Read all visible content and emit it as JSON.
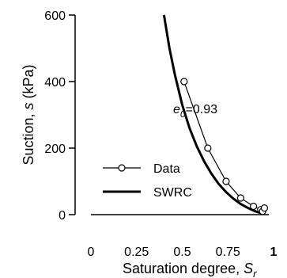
{
  "chart_data": {
    "type": "line",
    "xlabel_prefix": "Saturation degree, ",
    "xlabel_symbol": "S",
    "xlabel_sub": "r",
    "ylabel_prefix": "Suction, ",
    "ylabel_symbol": "s",
    "ylabel_suffix": " (kPa)",
    "xlim": [
      0,
      1
    ],
    "ylim": [
      0,
      600
    ],
    "x_ticks": [
      0,
      0.25,
      0.5,
      0.75,
      1
    ],
    "x_tick_labels": [
      "0",
      "0.25",
      "0.5",
      "0.75",
      "1"
    ],
    "y_ticks": [
      0,
      200,
      400,
      600
    ],
    "y_tick_labels": [
      "0",
      "200",
      "400",
      "600"
    ],
    "grid": false,
    "legend_position": "lower-left",
    "annotation": {
      "symbol": "e",
      "sub": "0",
      "value_text": "=0.93",
      "x": 0.45,
      "y": 305
    },
    "series": [
      {
        "name": "Data",
        "style": "line-with-open-circles",
        "color": "#000000",
        "x": [
          0.51,
          0.64,
          0.74,
          0.82,
          0.89,
          0.93,
          0.94,
          0.95
        ],
        "y": [
          400,
          200,
          100,
          50,
          25,
          15,
          10,
          20
        ]
      },
      {
        "name": "SWRC",
        "style": "thick-line",
        "color": "#000000",
        "x": [
          0.4,
          0.43,
          0.46,
          0.5,
          0.54,
          0.58,
          0.62,
          0.66,
          0.7,
          0.74,
          0.78,
          0.82,
          0.86,
          0.9,
          0.93,
          0.95
        ],
        "y": [
          600,
          500,
          420,
          330,
          260,
          205,
          160,
          123,
          92,
          68,
          48,
          32,
          20,
          10,
          5,
          2
        ]
      }
    ]
  }
}
